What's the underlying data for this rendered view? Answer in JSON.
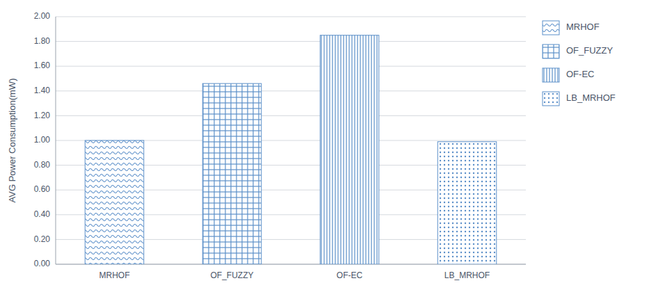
{
  "chart_data": {
    "type": "bar",
    "categories": [
      "MRHOF",
      "OF_FUZZY",
      "OF-EC",
      "LB_MRHOF"
    ],
    "values": [
      1.0,
      1.46,
      1.85,
      0.99
    ],
    "color": "#5b8fc9",
    "ylabel": "AVG Power Consumption(mW)",
    "ylim": [
      0,
      2.0
    ],
    "yticks": [
      {
        "value": 0.0,
        "label": "0.00"
      },
      {
        "value": 0.2,
        "label": "0.20"
      },
      {
        "value": 0.4,
        "label": "0.40"
      },
      {
        "value": 0.6,
        "label": "0.60"
      },
      {
        "value": 0.8,
        "label": "0.80"
      },
      {
        "value": 1.0,
        "label": "1.00"
      },
      {
        "value": 1.2,
        "label": "1.20"
      },
      {
        "value": 1.4,
        "label": "1.40"
      },
      {
        "value": 1.6,
        "label": "1.60"
      },
      {
        "value": 1.8,
        "label": "1.80"
      },
      {
        "value": 2.0,
        "label": "2.00"
      }
    ],
    "grid": true,
    "legend": "right"
  }
}
